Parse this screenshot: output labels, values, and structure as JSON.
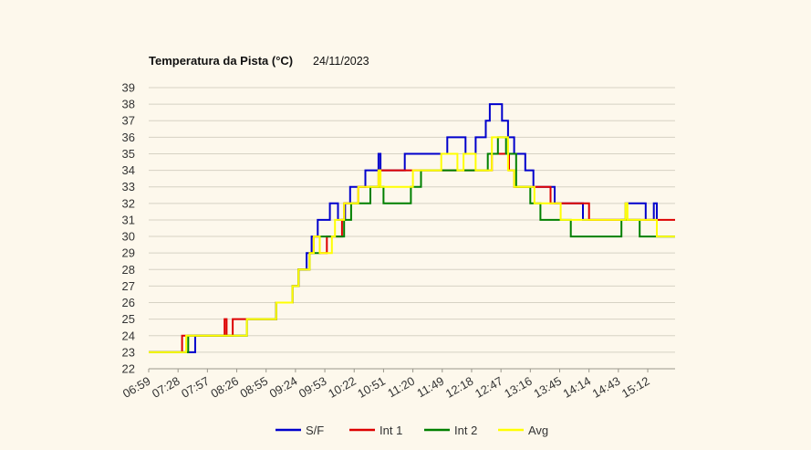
{
  "chart_data": {
    "type": "line",
    "title": "Temperatura da Pista (°C)",
    "subtitle": "24/11/2023",
    "xlabel": "",
    "ylabel": "",
    "ylim": [
      22,
      39
    ],
    "yticks": [
      22,
      23,
      24,
      25,
      26,
      27,
      28,
      29,
      30,
      31,
      32,
      33,
      34,
      35,
      36,
      37,
      38,
      39
    ],
    "x_tick_labels": [
      "06:59",
      "07:28",
      "07:57",
      "08:26",
      "08:55",
      "09:24",
      "09:53",
      "10:22",
      "10:51",
      "11:20",
      "11:49",
      "12:18",
      "12:47",
      "13:16",
      "13:45",
      "14:14",
      "14:43",
      "15:12"
    ],
    "x_start_min": 419,
    "x_end_min": 939,
    "grid": true,
    "legend_position": "bottom",
    "series": [
      {
        "name": "S/F",
        "color": "#0000cc",
        "steps": [
          [
            "06:59",
            23
          ],
          [
            "07:38",
            23
          ],
          [
            "07:45",
            24
          ],
          [
            "08:36",
            25
          ],
          [
            "09:05",
            26
          ],
          [
            "09:16",
            26
          ],
          [
            "09:21",
            27
          ],
          [
            "09:27",
            28
          ],
          [
            "09:32",
            28
          ],
          [
            "09:35",
            29
          ],
          [
            "09:40",
            30
          ],
          [
            "09:46",
            31
          ],
          [
            "09:54",
            31
          ],
          [
            "09:58",
            32
          ],
          [
            "10:06",
            31
          ],
          [
            "10:13",
            32
          ],
          [
            "10:18",
            33
          ],
          [
            "10:33",
            34
          ],
          [
            "10:46",
            35
          ],
          [
            "10:48",
            34
          ],
          [
            "11:04",
            34
          ],
          [
            "11:12",
            35
          ],
          [
            "11:54",
            36
          ],
          [
            "12:12",
            35
          ],
          [
            "12:16",
            35
          ],
          [
            "12:22",
            36
          ],
          [
            "12:32",
            37
          ],
          [
            "12:36",
            38
          ],
          [
            "12:48",
            37
          ],
          [
            "12:54",
            36
          ],
          [
            "13:00",
            35
          ],
          [
            "13:11",
            34
          ],
          [
            "13:19",
            33
          ],
          [
            "13:40",
            32
          ],
          [
            "14:08",
            31
          ],
          [
            "14:44",
            31
          ],
          [
            "14:50",
            32
          ],
          [
            "15:10",
            31
          ],
          [
            "15:18",
            32
          ],
          [
            "15:21",
            30
          ]
        ]
      },
      {
        "name": "Int 1",
        "color": "#dd0000",
        "steps": [
          [
            "06:59",
            23
          ],
          [
            "07:32",
            24
          ],
          [
            "07:36",
            24
          ],
          [
            "08:14",
            25
          ],
          [
            "08:16",
            24
          ],
          [
            "08:22",
            25
          ],
          [
            "08:36",
            25
          ],
          [
            "09:05",
            26
          ],
          [
            "09:16",
            26
          ],
          [
            "09:21",
            27
          ],
          [
            "09:27",
            28
          ],
          [
            "09:32",
            28
          ],
          [
            "09:38",
            29
          ],
          [
            "09:42",
            30
          ],
          [
            "09:48",
            29
          ],
          [
            "09:55",
            30
          ],
          [
            "10:00",
            30
          ],
          [
            "10:10",
            31
          ],
          [
            "10:12",
            32
          ],
          [
            "10:26",
            33
          ],
          [
            "10:46",
            34
          ],
          [
            "11:04",
            34
          ],
          [
            "11:30",
            34
          ],
          [
            "12:16",
            34
          ],
          [
            "12:38",
            35
          ],
          [
            "12:55",
            34
          ],
          [
            "13:00",
            33
          ],
          [
            "13:20",
            33
          ],
          [
            "13:36",
            32
          ],
          [
            "14:05",
            32
          ],
          [
            "14:14",
            31
          ],
          [
            "14:56",
            31
          ],
          [
            "15:21",
            31
          ]
        ]
      },
      {
        "name": "Int 2",
        "color": "#008000",
        "steps": [
          [
            "06:59",
            23
          ],
          [
            "07:38",
            24
          ],
          [
            "08:36",
            25
          ],
          [
            "09:05",
            26
          ],
          [
            "09:16",
            26
          ],
          [
            "09:21",
            27
          ],
          [
            "09:27",
            28
          ],
          [
            "09:32",
            28
          ],
          [
            "09:38",
            29
          ],
          [
            "09:48",
            30
          ],
          [
            "10:06",
            30
          ],
          [
            "10:12",
            31
          ],
          [
            "10:19",
            32
          ],
          [
            "10:38",
            33
          ],
          [
            "10:51",
            32
          ],
          [
            "11:18",
            33
          ],
          [
            "11:28",
            34
          ],
          [
            "12:16",
            34
          ],
          [
            "12:34",
            35
          ],
          [
            "12:44",
            36
          ],
          [
            "12:52",
            35
          ],
          [
            "13:02",
            33
          ],
          [
            "13:16",
            32
          ],
          [
            "13:26",
            31
          ],
          [
            "13:56",
            30
          ],
          [
            "14:46",
            31
          ],
          [
            "15:04",
            30
          ],
          [
            "15:12",
            30
          ],
          [
            "15:21",
            30
          ]
        ]
      },
      {
        "name": "Avg",
        "color": "#ffff00",
        "steps": [
          [
            "06:59",
            23
          ],
          [
            "07:36",
            24
          ],
          [
            "08:36",
            25
          ],
          [
            "09:05",
            26
          ],
          [
            "09:16",
            26
          ],
          [
            "09:21",
            27
          ],
          [
            "09:27",
            28
          ],
          [
            "09:32",
            28
          ],
          [
            "09:38",
            29
          ],
          [
            "09:42",
            30
          ],
          [
            "09:48",
            29
          ],
          [
            "10:00",
            30
          ],
          [
            "10:03",
            31
          ],
          [
            "10:12",
            32
          ],
          [
            "10:26",
            33
          ],
          [
            "10:46",
            34
          ],
          [
            "10:48",
            33
          ],
          [
            "11:12",
            33
          ],
          [
            "11:20",
            34
          ],
          [
            "11:48",
            35
          ],
          [
            "12:04",
            34
          ],
          [
            "12:10",
            35
          ],
          [
            "12:16",
            35
          ],
          [
            "12:22",
            34
          ],
          [
            "12:38",
            36
          ],
          [
            "12:54",
            34
          ],
          [
            "13:00",
            33
          ],
          [
            "13:10",
            33
          ],
          [
            "13:20",
            32
          ],
          [
            "13:46",
            31
          ],
          [
            "14:12",
            31
          ],
          [
            "14:50",
            32
          ],
          [
            "14:52",
            31
          ],
          [
            "15:12",
            31
          ],
          [
            "15:21",
            30
          ]
        ]
      }
    ]
  }
}
